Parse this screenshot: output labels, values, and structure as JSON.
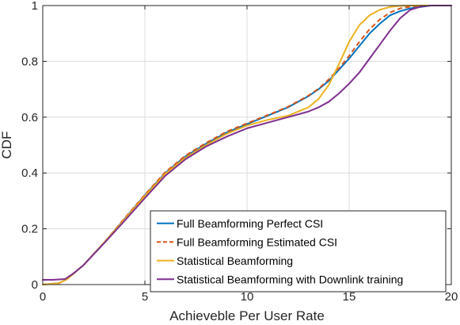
{
  "chart_data": {
    "type": "line",
    "title": "",
    "xlabel": "Achieveble Per User Rate",
    "ylabel": "CDF",
    "xlim": [
      0,
      20
    ],
    "ylim": [
      0,
      1
    ],
    "xticks": [
      0,
      5,
      10,
      15,
      20
    ],
    "yticks": [
      0,
      0.2,
      0.4,
      0.6,
      0.8,
      1
    ],
    "xtick_labels": [
      "0",
      "5",
      "10",
      "15",
      "20"
    ],
    "ytick_labels": [
      "0",
      "0.2",
      "0.4",
      "0.6",
      "0.8",
      "1"
    ],
    "grid": true,
    "legend_position": "bottom-right",
    "series": [
      {
        "name": "Full Beamforming Perfect CSI",
        "color": "#0072BD",
        "dash": "solid",
        "x": [
          0,
          0.8,
          1.2,
          2,
          3,
          4,
          5,
          6,
          7,
          8,
          9,
          10,
          11,
          12,
          13,
          13.5,
          14,
          14.5,
          15,
          15.5,
          16,
          16.5,
          17,
          17.5,
          18,
          18.5,
          19,
          19.5,
          20
        ],
        "y": [
          0,
          0.005,
          0.02,
          0.07,
          0.15,
          0.235,
          0.32,
          0.4,
          0.46,
          0.505,
          0.545,
          0.575,
          0.605,
          0.635,
          0.675,
          0.7,
          0.73,
          0.77,
          0.81,
          0.855,
          0.9,
          0.935,
          0.965,
          0.98,
          0.99,
          0.995,
          1.0,
          1.0,
          1.0
        ]
      },
      {
        "name": "Full Beamforming Estimated CSI",
        "color": "#D95319",
        "dash": "dashed",
        "x": [
          0,
          0.8,
          1.2,
          2,
          3,
          4,
          5,
          6,
          7,
          8,
          9,
          10,
          11,
          12,
          13,
          13.5,
          14,
          14.5,
          15,
          15.5,
          16,
          16.5,
          17,
          17.5,
          18,
          18.5,
          19,
          19.5,
          20
        ],
        "y": [
          0,
          0.005,
          0.02,
          0.07,
          0.15,
          0.237,
          0.322,
          0.403,
          0.463,
          0.508,
          0.548,
          0.578,
          0.607,
          0.637,
          0.677,
          0.702,
          0.735,
          0.775,
          0.82,
          0.87,
          0.915,
          0.95,
          0.975,
          0.99,
          0.996,
          0.999,
          1.0,
          1.0,
          1.0
        ]
      },
      {
        "name": "Statistical Beamforming",
        "color": "#EDB120",
        "dash": "solid",
        "x": [
          0,
          0.8,
          1.2,
          2,
          3,
          4,
          5,
          6,
          7,
          8,
          9,
          10,
          11,
          12,
          13,
          13.5,
          14,
          14.5,
          15,
          15.5,
          16,
          16.5,
          17,
          17.5,
          18,
          18.5,
          19,
          19.5,
          20
        ],
        "y": [
          0,
          0.005,
          0.02,
          0.07,
          0.15,
          0.233,
          0.317,
          0.397,
          0.455,
          0.5,
          0.54,
          0.57,
          0.59,
          0.605,
          0.635,
          0.665,
          0.715,
          0.79,
          0.87,
          0.93,
          0.965,
          0.985,
          0.995,
          0.999,
          1.0,
          1.0,
          1.0,
          1.0,
          1.0
        ]
      },
      {
        "name": "Statistical Beamforming with Downlink training",
        "color": "#7E2F8E",
        "dash": "solid",
        "x": [
          0,
          0.5,
          1.1,
          1.5,
          2,
          3,
          4,
          5,
          6,
          7,
          8,
          9,
          10,
          11,
          12,
          13,
          13.5,
          14,
          14.5,
          15,
          15.5,
          16,
          16.5,
          17,
          17.5,
          18,
          18.5,
          19,
          19.5,
          20
        ],
        "y": [
          0.017,
          0.017,
          0.02,
          0.04,
          0.07,
          0.148,
          0.228,
          0.31,
          0.39,
          0.45,
          0.495,
          0.53,
          0.56,
          0.58,
          0.6,
          0.62,
          0.635,
          0.655,
          0.685,
          0.72,
          0.76,
          0.81,
          0.86,
          0.91,
          0.955,
          0.985,
          0.996,
          1.0,
          1.0,
          1.0
        ]
      }
    ]
  }
}
